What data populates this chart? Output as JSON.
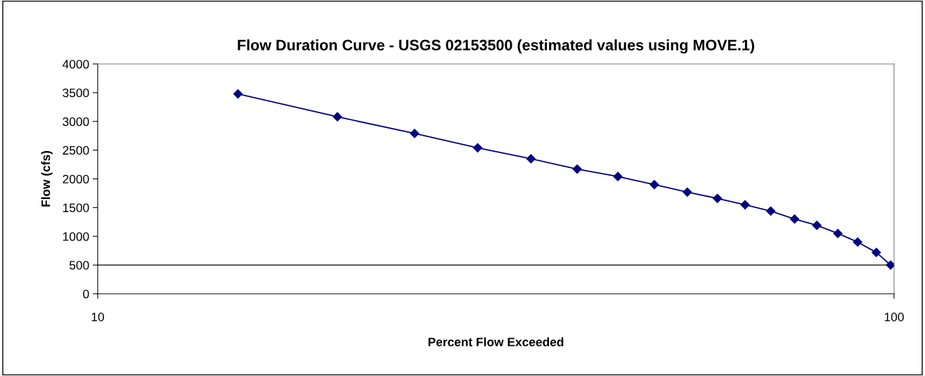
{
  "chart_data": {
    "type": "line",
    "title": "Flow Duration Curve - USGS 02153500 (estimated values using MOVE.1)",
    "xlabel": "Percent Flow Exceeded",
    "ylabel": "Flow (cfs)",
    "x": [
      15,
      20,
      25,
      30,
      35,
      40,
      45,
      50,
      55,
      60,
      65,
      70,
      75,
      80,
      85,
      90,
      95,
      99
    ],
    "series": [
      {
        "color": "#000080",
        "values": [
          3480,
          3080,
          2790,
          2540,
          2350,
          2170,
          2040,
          1900,
          1770,
          1660,
          1550,
          1440,
          1300,
          1190,
          1050,
          900,
          720,
          500
        ]
      }
    ],
    "log": "x",
    "xlim": [
      10,
      100
    ],
    "xticks": [
      10,
      100
    ],
    "ylim": [
      0,
      4000
    ],
    "yticks": [
      0,
      500,
      1000,
      1500,
      2000,
      2500,
      3000,
      3500,
      4000
    ],
    "grid": false,
    "legend": false,
    "marker": "diamond",
    "line_style": "solid",
    "ref_lines": [
      {
        "axis": "y",
        "value": 500,
        "color": "#000000"
      }
    ]
  }
}
